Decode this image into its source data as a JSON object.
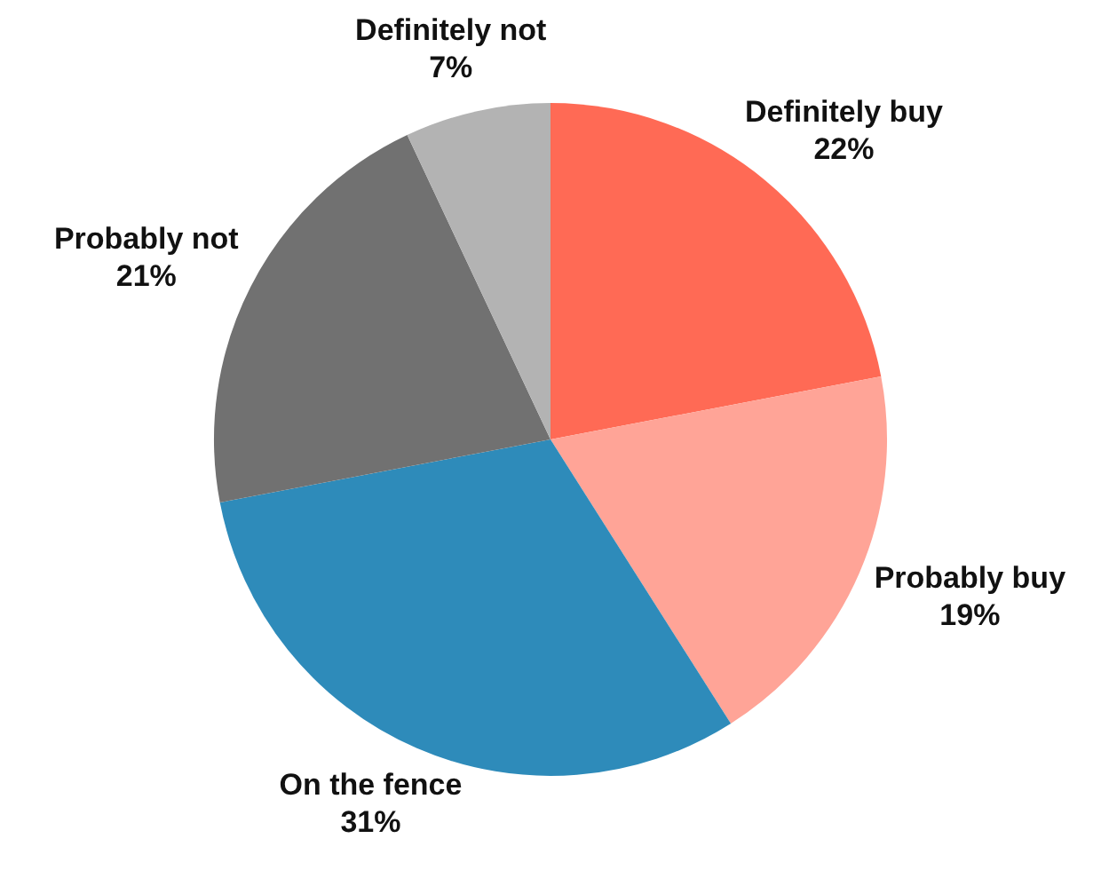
{
  "chart_data": {
    "type": "pie",
    "categories": [
      "Definitely buy",
      "Probably buy",
      "On the fence",
      "Probably not",
      "Definitely not"
    ],
    "values": [
      22,
      19,
      31,
      21,
      7
    ],
    "value_labels": [
      "22%",
      "19%",
      "31%",
      "21%",
      "7%"
    ],
    "colors": [
      "#ff6a55",
      "#ffa497",
      "#2e8bba",
      "#717171",
      "#b3b3b3"
    ],
    "legend": false
  }
}
